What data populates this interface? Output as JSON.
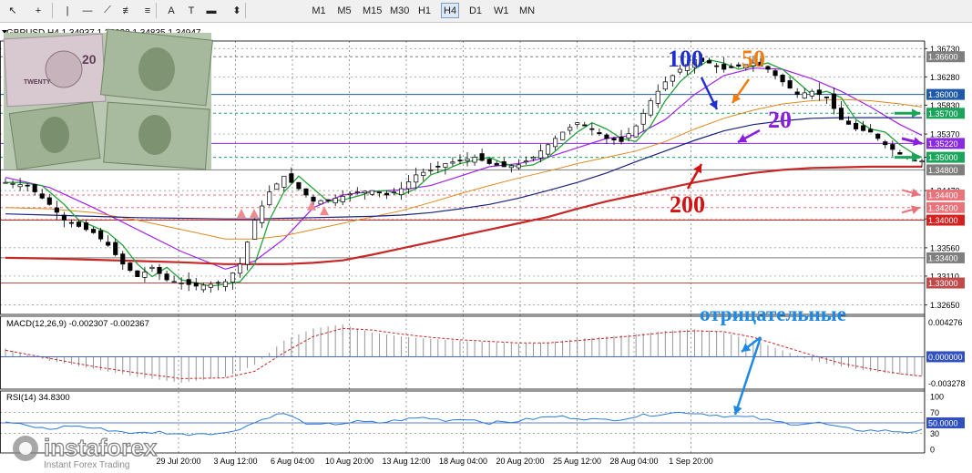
{
  "toolbar": {
    "tools": [
      {
        "name": "cursor-icon",
        "glyph": "↖"
      },
      {
        "name": "crosshair-icon",
        "glyph": "+"
      },
      {
        "name": "vertical-line-icon",
        "glyph": "|"
      },
      {
        "name": "horizontal-line-icon",
        "glyph": "—"
      },
      {
        "name": "trendline-icon",
        "glyph": "⟋"
      },
      {
        "name": "equidistant-channel-icon",
        "glyph": "≢"
      },
      {
        "name": "fibonacci-icon",
        "glyph": "≡"
      },
      {
        "name": "text-icon",
        "glyph": "A"
      },
      {
        "name": "text-label-icon",
        "glyph": "T"
      },
      {
        "name": "rectangle-icon",
        "glyph": "▬"
      },
      {
        "name": "arrows-icon",
        "glyph": "⬍"
      }
    ],
    "timeframes": [
      "M1",
      "M5",
      "M15",
      "M30",
      "H1",
      "H4",
      "D1",
      "W1",
      "MN"
    ],
    "active_timeframe": "H4"
  },
  "chart_data": {
    "type": "candlestick",
    "symbol_header": "GBPUSD,H4  1.34937 1.35033 1.34835 1.34947",
    "x_labels": [
      "29 Jul 20:00",
      "3 Aug 12:00",
      "6 Aug 04:00",
      "10 Aug 20:00",
      "13 Aug 12:00",
      "18 Aug 04:00",
      "20 Aug 20:00",
      "25 Aug 12:00",
      "28 Aug 04:00",
      "1 Sep 20:00"
    ],
    "y_ticks": [
      "1.36730",
      "1.36280",
      "1.35830",
      "1.35370",
      "1.35000",
      "1.34470",
      "1.34020",
      "1.33560",
      "1.33110",
      "1.32650"
    ],
    "ylim": [
      1.325,
      1.3685
    ],
    "price_levels": [
      {
        "label": "1.36600",
        "value": 1.366,
        "color": "#7f7f7f"
      },
      {
        "label": "1.36000",
        "value": 1.36,
        "color": "#1f5aa8"
      },
      {
        "label": "1.35700",
        "value": 1.357,
        "color": "#1aa55a"
      },
      {
        "label": "1.35220",
        "value": 1.3522,
        "color": "#8a2be2"
      },
      {
        "label": "1.35000",
        "value": 1.35,
        "color": "#1aa55a"
      },
      {
        "label": "1.34800",
        "value": 1.348,
        "color": "#7f7f7f"
      },
      {
        "label": "1.34400",
        "value": 1.344,
        "color": "#e8737a"
      },
      {
        "label": "1.34200",
        "value": 1.342,
        "color": "#e8737a"
      },
      {
        "label": "1.34000",
        "value": 1.34,
        "color": "#d62020"
      },
      {
        "label": "1.33400",
        "value": 1.334,
        "color": "#7f7f7f"
      },
      {
        "label": "1.33000",
        "value": 1.33,
        "color": "#c04a4a"
      }
    ],
    "close_path": [
      [
        0,
        1.346
      ],
      [
        3,
        1.3455
      ],
      [
        6,
        1.3425
      ],
      [
        8,
        1.34
      ],
      [
        10,
        1.339
      ],
      [
        12,
        1.338
      ],
      [
        14,
        1.336
      ],
      [
        16,
        1.333
      ],
      [
        18,
        1.331
      ],
      [
        20,
        1.3325
      ],
      [
        22,
        1.3305
      ],
      [
        24,
        1.33
      ],
      [
        26,
        1.3295
      ],
      [
        28,
        1.3298
      ],
      [
        30,
        1.3302
      ],
      [
        32,
        1.333
      ],
      [
        34,
        1.34
      ],
      [
        36,
        1.3445
      ],
      [
        38,
        1.347
      ],
      [
        40,
        1.345
      ],
      [
        42,
        1.343
      ],
      [
        44,
        1.3432
      ],
      [
        46,
        1.3438
      ],
      [
        48,
        1.3445
      ],
      [
        50,
        1.3447
      ],
      [
        52,
        1.344
      ],
      [
        54,
        1.345
      ],
      [
        56,
        1.3472
      ],
      [
        58,
        1.348
      ],
      [
        60,
        1.349
      ],
      [
        62,
        1.3495
      ],
      [
        64,
        1.35
      ],
      [
        66,
        1.349
      ],
      [
        68,
        1.3485
      ],
      [
        70,
        1.3488
      ],
      [
        72,
        1.35
      ],
      [
        74,
        1.352
      ],
      [
        76,
        1.354
      ],
      [
        78,
        1.3555
      ],
      [
        80,
        1.3545
      ],
      [
        82,
        1.353
      ],
      [
        84,
        1.3525
      ],
      [
        86,
        1.355
      ],
      [
        88,
        1.359
      ],
      [
        90,
        1.362
      ],
      [
        92,
        1.364
      ],
      [
        94,
        1.3655
      ],
      [
        96,
        1.365
      ],
      [
        98,
        1.364
      ],
      [
        100,
        1.3645
      ],
      [
        102,
        1.365
      ],
      [
        104,
        1.364
      ],
      [
        106,
        1.362
      ],
      [
        108,
        1.36
      ],
      [
        110,
        1.3605
      ],
      [
        112,
        1.3595
      ],
      [
        114,
        1.356
      ],
      [
        116,
        1.3545
      ],
      [
        118,
        1.354
      ],
      [
        120,
        1.352
      ],
      [
        122,
        1.3505
      ],
      [
        124,
        1.3495
      ],
      [
        125,
        1.3494
      ]
    ],
    "series": [
      {
        "name": "MA 20",
        "color": "#a020f0",
        "values": [
          [
            0,
            1.3468
          ],
          [
            6,
            1.3452
          ],
          [
            12,
            1.342
          ],
          [
            18,
            1.3385
          ],
          [
            24,
            1.335
          ],
          [
            30,
            1.3322
          ],
          [
            34,
            1.3335
          ],
          [
            38,
            1.337
          ],
          [
            42,
            1.342
          ],
          [
            46,
            1.344
          ],
          [
            50,
            1.3446
          ],
          [
            54,
            1.3448
          ],
          [
            58,
            1.3455
          ],
          [
            62,
            1.347
          ],
          [
            66,
            1.3485
          ],
          [
            70,
            1.349
          ],
          [
            74,
            1.35
          ],
          [
            78,
            1.3515
          ],
          [
            82,
            1.353
          ],
          [
            86,
            1.3535
          ],
          [
            90,
            1.356
          ],
          [
            94,
            1.36
          ],
          [
            98,
            1.363
          ],
          [
            102,
            1.3642
          ],
          [
            106,
            1.364
          ],
          [
            110,
            1.3625
          ],
          [
            114,
            1.3605
          ],
          [
            118,
            1.358
          ],
          [
            122,
            1.3552
          ],
          [
            125,
            1.3535
          ]
        ]
      },
      {
        "name": "MA 50",
        "color": "#e08a1e",
        "values": [
          [
            0,
            1.342
          ],
          [
            6,
            1.3418
          ],
          [
            12,
            1.3412
          ],
          [
            18,
            1.34
          ],
          [
            24,
            1.3385
          ],
          [
            30,
            1.337
          ],
          [
            34,
            1.337
          ],
          [
            38,
            1.3375
          ],
          [
            42,
            1.3385
          ],
          [
            46,
            1.3395
          ],
          [
            50,
            1.3405
          ],
          [
            54,
            1.3415
          ],
          [
            58,
            1.3428
          ],
          [
            62,
            1.3442
          ],
          [
            66,
            1.3455
          ],
          [
            70,
            1.3467
          ],
          [
            74,
            1.3478
          ],
          [
            78,
            1.349
          ],
          [
            82,
            1.35
          ],
          [
            86,
            1.351
          ],
          [
            90,
            1.3525
          ],
          [
            94,
            1.3545
          ],
          [
            98,
            1.3562
          ],
          [
            102,
            1.3575
          ],
          [
            106,
            1.3585
          ],
          [
            110,
            1.359
          ],
          [
            114,
            1.3592
          ],
          [
            118,
            1.359
          ],
          [
            122,
            1.3585
          ],
          [
            125,
            1.358
          ]
        ]
      },
      {
        "name": "MA 100",
        "color": "#1a237e",
        "values": [
          [
            0,
            1.341
          ],
          [
            6,
            1.3408
          ],
          [
            12,
            1.3406
          ],
          [
            18,
            1.3404
          ],
          [
            24,
            1.3403
          ],
          [
            30,
            1.3402
          ],
          [
            34,
            1.3402
          ],
          [
            38,
            1.3403
          ],
          [
            42,
            1.3404
          ],
          [
            46,
            1.3405
          ],
          [
            50,
            1.3406
          ],
          [
            54,
            1.3408
          ],
          [
            58,
            1.3412
          ],
          [
            62,
            1.3418
          ],
          [
            66,
            1.3425
          ],
          [
            70,
            1.3435
          ],
          [
            74,
            1.3447
          ],
          [
            78,
            1.346
          ],
          [
            82,
            1.3475
          ],
          [
            86,
            1.3493
          ],
          [
            90,
            1.351
          ],
          [
            94,
            1.3527
          ],
          [
            98,
            1.3542
          ],
          [
            102,
            1.3552
          ],
          [
            106,
            1.3558
          ],
          [
            110,
            1.3562
          ],
          [
            114,
            1.3563
          ],
          [
            118,
            1.3563
          ],
          [
            122,
            1.3563
          ],
          [
            125,
            1.3563
          ]
        ]
      },
      {
        "name": "MA 200",
        "color": "#c62828",
        "values": [
          [
            0,
            1.334
          ],
          [
            6,
            1.3339
          ],
          [
            12,
            1.3337
          ],
          [
            18,
            1.3335
          ],
          [
            24,
            1.3333
          ],
          [
            30,
            1.333
          ],
          [
            34,
            1.333
          ],
          [
            38,
            1.333
          ],
          [
            42,
            1.3332
          ],
          [
            46,
            1.3336
          ],
          [
            50,
            1.3345
          ],
          [
            54,
            1.3355
          ],
          [
            58,
            1.3365
          ],
          [
            62,
            1.3375
          ],
          [
            66,
            1.3385
          ],
          [
            70,
            1.3395
          ],
          [
            74,
            1.3405
          ],
          [
            78,
            1.3418
          ],
          [
            82,
            1.343
          ],
          [
            86,
            1.344
          ],
          [
            90,
            1.345
          ],
          [
            94,
            1.346
          ],
          [
            98,
            1.3468
          ],
          [
            102,
            1.3475
          ],
          [
            106,
            1.348
          ],
          [
            110,
            1.3483
          ],
          [
            114,
            1.3484
          ],
          [
            118,
            1.3485
          ],
          [
            122,
            1.3485
          ],
          [
            125,
            1.3485
          ]
        ]
      }
    ],
    "annotations": {
      "ma_labels": [
        {
          "text": "100",
          "color": "#1f2fd0"
        },
        {
          "text": "50",
          "color": "#f07d12"
        },
        {
          "text": "20",
          "color": "#8a1ce0"
        },
        {
          "text": "200",
          "color": "#d41010"
        }
      ],
      "negatives_label": "отрицательные",
      "negatives_color": "#1e88e5"
    },
    "macd": {
      "header": "MACD(12,26,9) -0.002307 -0.002367",
      "ticks": [
        "0.004276",
        "0.000000",
        "-0.003278"
      ],
      "ylim": [
        -0.004,
        0.005
      ],
      "histogram": [
        [
          0,
          0.001
        ],
        [
          6,
          -0.0005
        ],
        [
          12,
          -0.0015
        ],
        [
          18,
          -0.0025
        ],
        [
          24,
          -0.0032
        ],
        [
          30,
          -0.0025
        ],
        [
          34,
          -0.001
        ],
        [
          38,
          0.002
        ],
        [
          42,
          0.0035
        ],
        [
          46,
          0.004
        ],
        [
          50,
          0.003
        ],
        [
          54,
          0.0025
        ],
        [
          58,
          0.0022
        ],
        [
          62,
          0.002
        ],
        [
          66,
          0.0018
        ],
        [
          70,
          0.0016
        ],
        [
          74,
          0.0018
        ],
        [
          78,
          0.0022
        ],
        [
          82,
          0.0025
        ],
        [
          86,
          0.0028
        ],
        [
          90,
          0.0032
        ],
        [
          94,
          0.0034
        ],
        [
          98,
          0.003
        ],
        [
          102,
          0.002
        ],
        [
          106,
          0.0008
        ],
        [
          110,
          -0.0005
        ],
        [
          114,
          -0.0012
        ],
        [
          118,
          -0.0018
        ],
        [
          122,
          -0.0022
        ],
        [
          125,
          -0.0023
        ]
      ],
      "signal": [
        [
          0,
          0.0008
        ],
        [
          6,
          -0.0002
        ],
        [
          12,
          -0.0012
        ],
        [
          18,
          -0.002
        ],
        [
          24,
          -0.0027
        ],
        [
          30,
          -0.0026
        ],
        [
          34,
          -0.0018
        ],
        [
          38,
          0.0005
        ],
        [
          42,
          0.0025
        ],
        [
          46,
          0.0035
        ],
        [
          50,
          0.0033
        ],
        [
          54,
          0.0028
        ],
        [
          58,
          0.0024
        ],
        [
          62,
          0.0021
        ],
        [
          66,
          0.0019
        ],
        [
          70,
          0.0017
        ],
        [
          74,
          0.0017
        ],
        [
          78,
          0.002
        ],
        [
          82,
          0.0023
        ],
        [
          86,
          0.0026
        ],
        [
          90,
          0.003
        ],
        [
          94,
          0.0032
        ],
        [
          98,
          0.0031
        ],
        [
          102,
          0.0024
        ],
        [
          106,
          0.0013
        ],
        [
          110,
          0.0002
        ],
        [
          114,
          -0.0008
        ],
        [
          118,
          -0.0015
        ],
        [
          122,
          -0.0021
        ],
        [
          125,
          -0.0024
        ]
      ]
    },
    "rsi": {
      "header": "RSI(14) 34.8300",
      "ticks": [
        "100",
        "70",
        "50",
        "30",
        "0"
      ],
      "badge": "50.0000",
      "ylim": [
        0,
        100
      ],
      "line": [
        [
          0,
          52
        ],
        [
          3,
          44
        ],
        [
          6,
          38
        ],
        [
          9,
          45
        ],
        [
          12,
          40
        ],
        [
          15,
          35
        ],
        [
          18,
          30
        ],
        [
          21,
          33
        ],
        [
          24,
          28
        ],
        [
          27,
          31
        ],
        [
          30,
          30
        ],
        [
          33,
          45
        ],
        [
          36,
          62
        ],
        [
          38,
          68
        ],
        [
          40,
          55
        ],
        [
          42,
          45
        ],
        [
          45,
          48
        ],
        [
          48,
          52
        ],
        [
          51,
          50
        ],
        [
          54,
          56
        ],
        [
          57,
          60
        ],
        [
          60,
          55
        ],
        [
          63,
          58
        ],
        [
          66,
          50
        ],
        [
          69,
          52
        ],
        [
          72,
          58
        ],
        [
          75,
          62
        ],
        [
          78,
          60
        ],
        [
          81,
          55
        ],
        [
          84,
          58
        ],
        [
          87,
          64
        ],
        [
          90,
          68
        ],
        [
          93,
          70
        ],
        [
          96,
          66
        ],
        [
          99,
          62
        ],
        [
          102,
          60
        ],
        [
          105,
          52
        ],
        [
          108,
          48
        ],
        [
          111,
          50
        ],
        [
          114,
          40
        ],
        [
          117,
          36
        ],
        [
          120,
          35
        ],
        [
          123,
          33
        ],
        [
          125,
          35
        ]
      ]
    }
  },
  "watermark": {
    "brand": "instaforex",
    "tagline": "Instant Forex Trading"
  },
  "overlay_image": {
    "banknote_label": "TWENTY",
    "banknote_value": "20"
  }
}
